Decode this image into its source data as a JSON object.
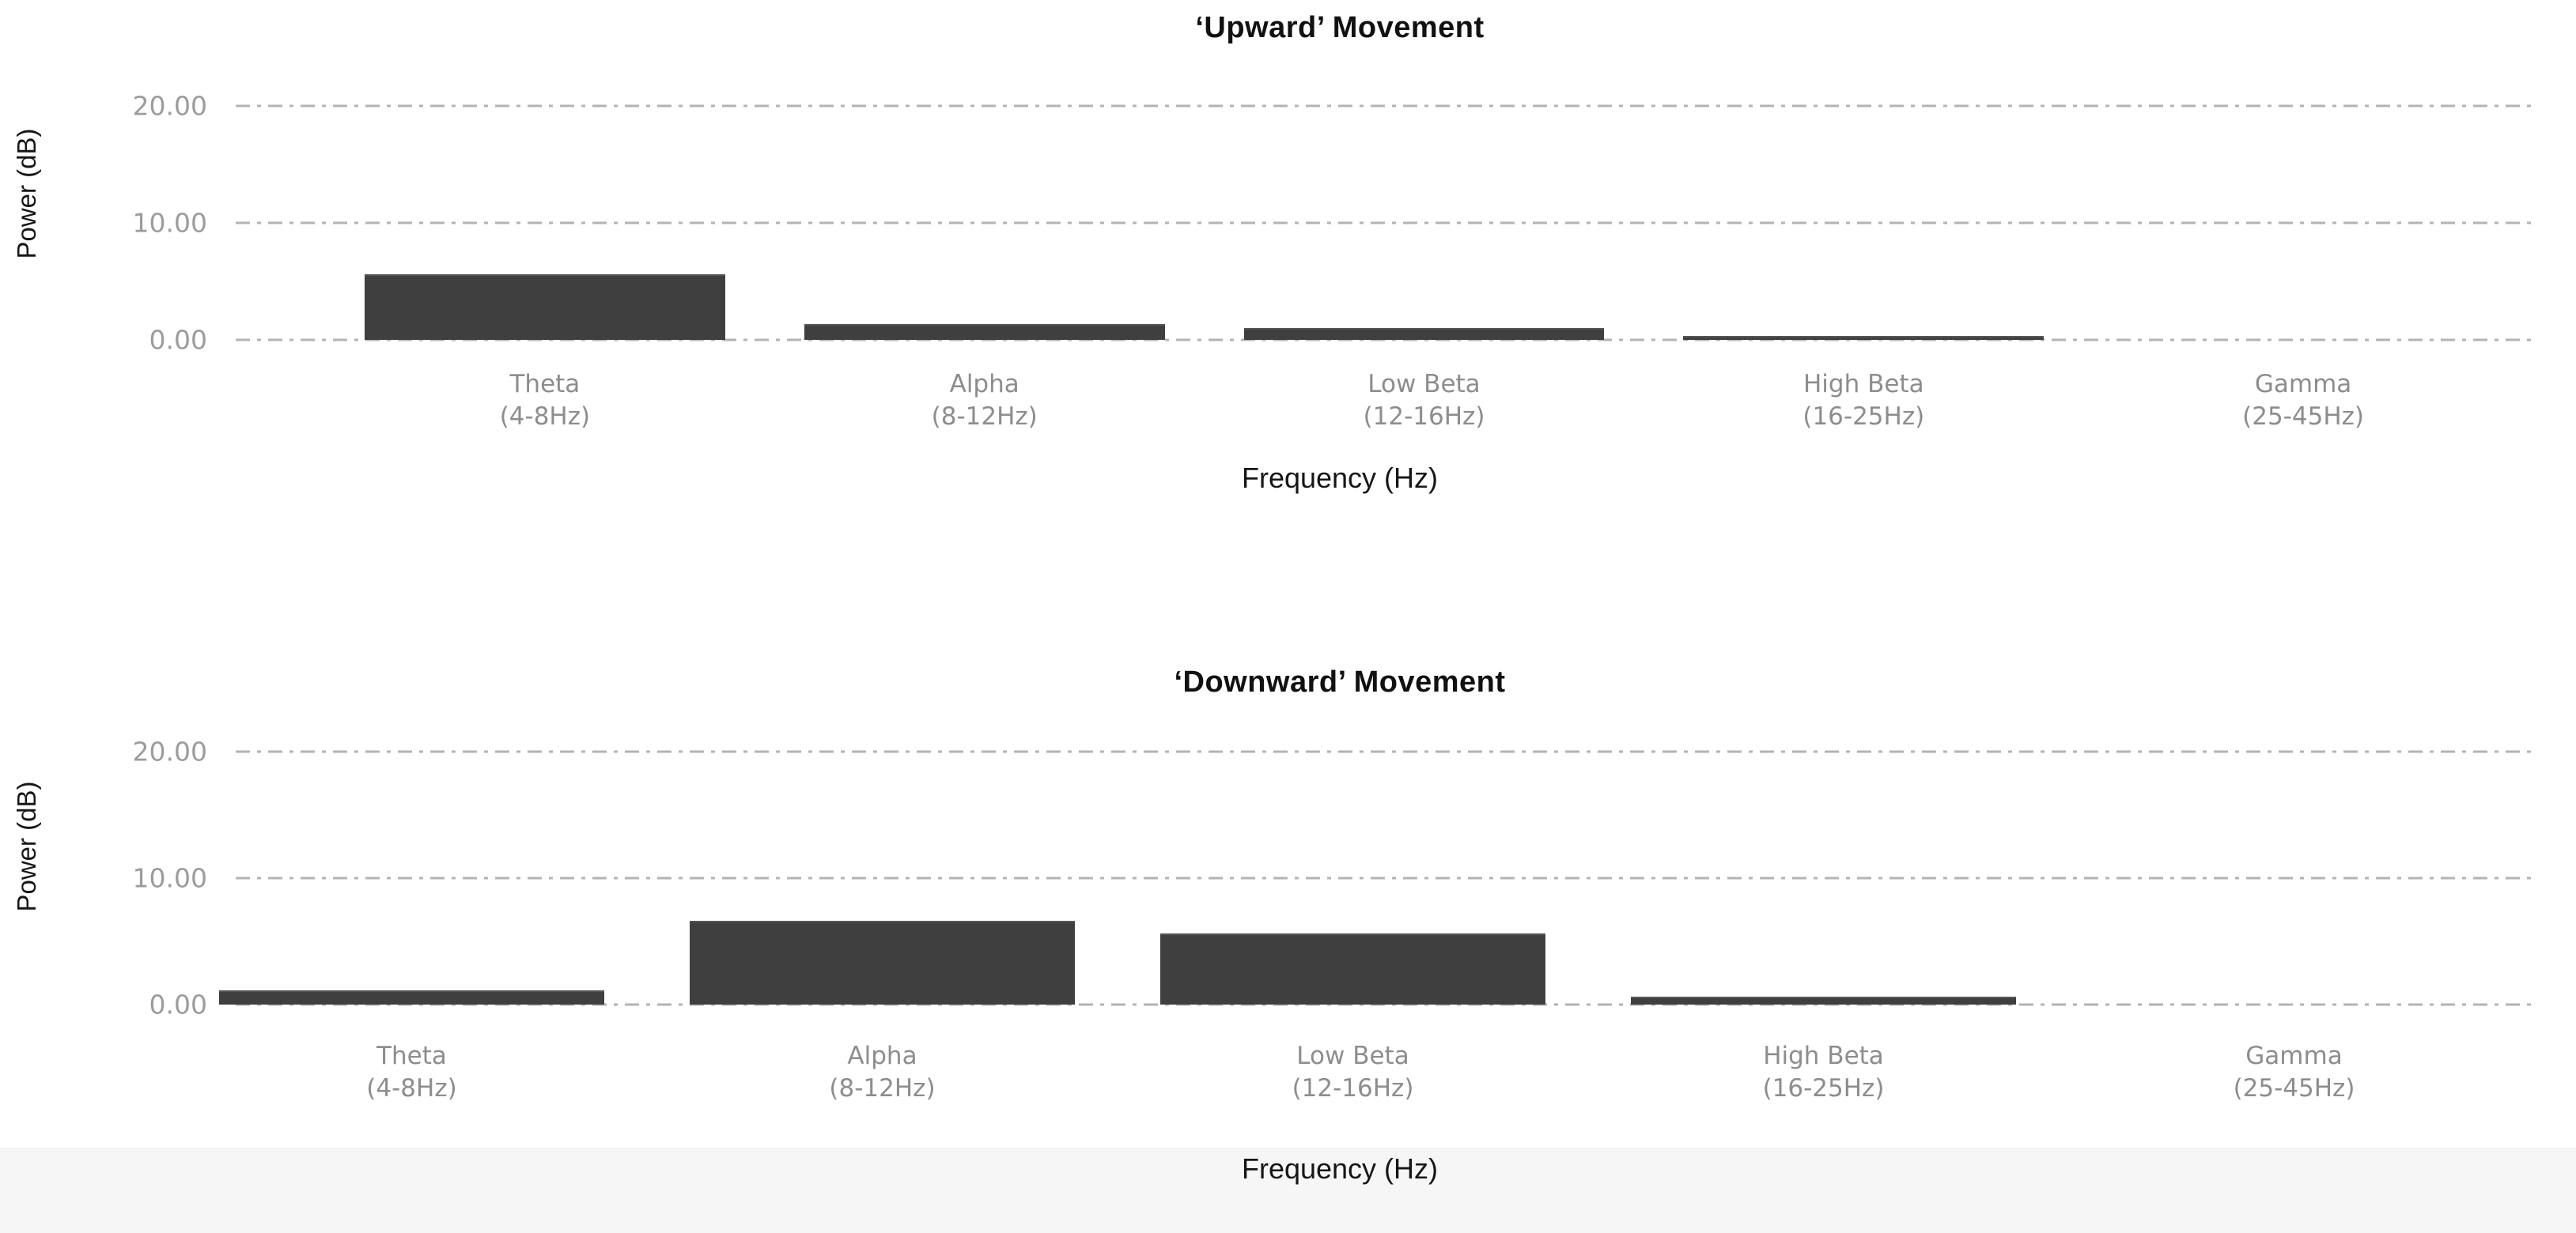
{
  "style": {
    "bar_color": "#3f3f3f",
    "bar_top_edge_color": "#565656",
    "gridline_color": "#b3b3b3",
    "tick_label_color": "#9c9c9c",
    "category_label_color": "#8d8d8d",
    "axis_title_color": "#161616",
    "title_color": "#111111",
    "background_color": "#ffffff",
    "footer_band_color": "#f6f6f7"
  },
  "chart_data": [
    {
      "type": "bar",
      "title": "‘Upward’ Movement",
      "xlabel": "Frequency (Hz)",
      "ylabel": "Power (dB)",
      "categories": [
        {
          "band": "Theta",
          "range": "(4-8Hz)"
        },
        {
          "band": "Alpha",
          "range": "(8-12Hz)"
        },
        {
          "band": "Low Beta",
          "range": "(12-16Hz)"
        },
        {
          "band": "High Beta",
          "range": "(16-25Hz)"
        },
        {
          "band": "Gamma",
          "range": "(25-45Hz)"
        }
      ],
      "values": [
        5.5,
        1.2,
        0.9,
        0.2,
        0.0
      ],
      "ylim": [
        0,
        25
      ],
      "yticks": [
        0,
        10,
        20
      ],
      "ytick_labels": [
        "0.00",
        "10.00",
        "20.00"
      ],
      "grid": "horizontal-dashed",
      "legend": "none"
    },
    {
      "type": "bar",
      "title": "‘Downward’ Movement",
      "xlabel": "Frequency (Hz)",
      "ylabel": "Power (dB)",
      "categories": [
        {
          "band": "Theta",
          "range": "(4-8Hz)"
        },
        {
          "band": "Alpha",
          "range": "(8-12Hz)"
        },
        {
          "band": "Low Beta",
          "range": "(12-16Hz)"
        },
        {
          "band": "High Beta",
          "range": "(16-25Hz)"
        },
        {
          "band": "Gamma",
          "range": "(25-45Hz)"
        }
      ],
      "values": [
        1.0,
        6.5,
        5.5,
        0.5,
        0.0
      ],
      "ylim": [
        0,
        25
      ],
      "yticks": [
        0,
        10,
        20
      ],
      "ytick_labels": [
        "0.00",
        "10.00",
        "20.00"
      ],
      "grid": "horizontal-dashed",
      "legend": "none"
    }
  ]
}
